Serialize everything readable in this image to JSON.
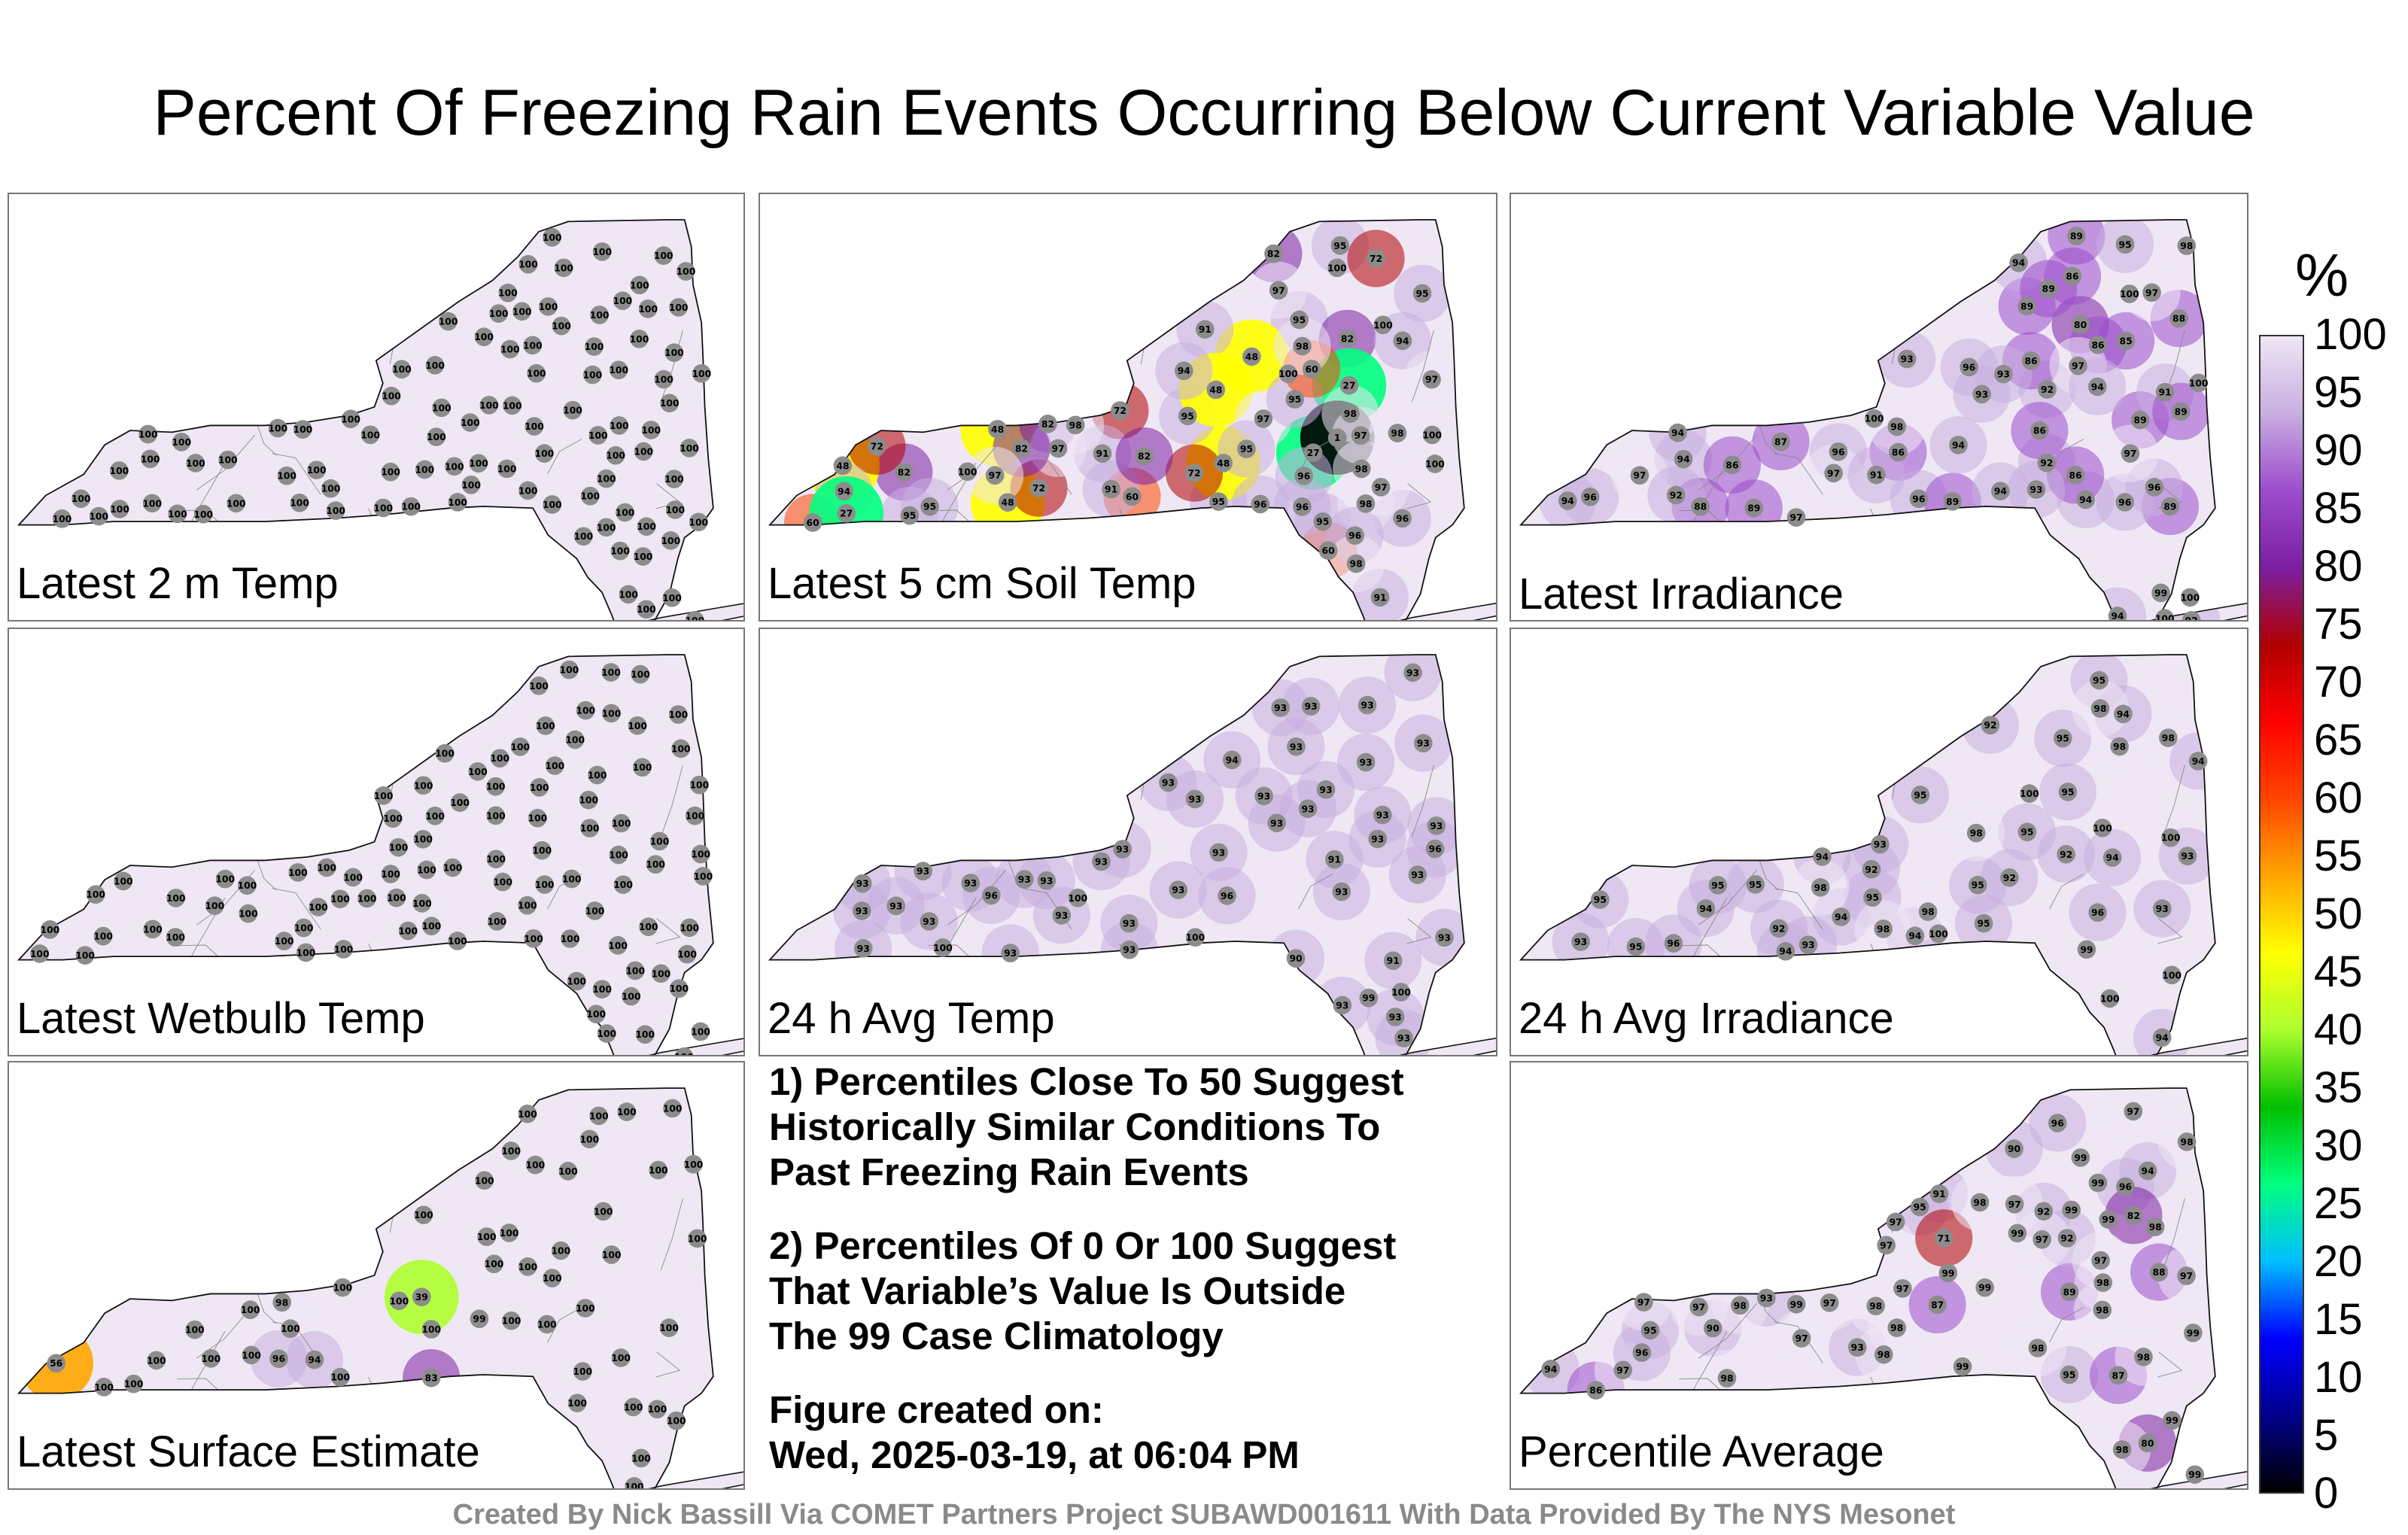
{
  "title": "Percent Of Freezing Rain Events Occurring Below Current Variable Value",
  "panels": [
    {
      "label": "Latest 2 m Temp",
      "station_values": [
        100,
        100,
        100,
        100,
        100,
        100,
        100,
        100,
        100,
        100,
        100,
        100,
        100,
        100,
        100,
        100,
        100,
        100,
        100,
        100,
        100,
        100,
        100,
        100,
        100,
        100,
        100,
        100,
        100,
        100,
        100,
        100,
        100,
        100,
        100,
        100,
        100,
        100,
        100,
        100,
        100,
        100,
        100,
        100,
        100,
        100,
        100,
        100,
        100,
        100,
        100,
        100,
        100,
        100,
        100,
        100,
        100,
        100,
        100,
        100,
        100,
        100,
        100,
        100,
        100,
        100,
        100,
        100,
        100,
        100,
        100,
        100,
        100,
        100,
        100,
        100,
        100,
        100,
        100,
        100,
        100,
        100,
        100,
        100,
        100,
        100,
        100,
        100,
        100,
        100,
        100,
        100,
        100,
        100,
        100,
        100
      ]
    },
    {
      "label": "Latest 5 cm Soil Temp",
      "station_values": [
        82,
        95,
        60,
        82,
        95,
        82,
        48,
        95,
        72,
        60,
        48,
        91,
        95,
        48,
        94,
        95,
        91,
        27,
        72,
        48,
        27,
        48,
        82,
        72,
        60,
        48,
        1,
        72,
        91,
        98,
        100,
        98,
        97,
        97,
        95,
        98,
        96,
        98,
        97,
        94,
        96,
        60,
        27,
        95,
        98,
        82,
        94,
        95,
        97,
        95,
        100,
        96,
        97,
        97,
        82,
        100,
        95,
        100,
        96,
        91,
        72,
        98,
        100,
        100,
        97,
        98,
        96
      ]
    },
    {
      "label": "Latest Irradiance",
      "station_values": [
        97,
        98,
        100,
        89,
        96,
        94,
        92,
        80,
        94,
        88,
        92,
        86,
        86,
        94,
        86,
        86,
        85,
        86,
        86,
        89,
        86,
        87,
        89,
        93,
        89,
        88,
        89,
        100,
        97,
        100,
        96,
        100,
        99,
        98,
        100,
        97,
        96,
        97,
        95,
        94,
        93,
        91,
        91,
        96,
        97,
        94,
        96,
        92,
        94,
        89,
        97,
        96,
        94,
        93,
        92,
        89,
        94,
        89,
        93,
        94
      ]
    },
    {
      "label": "Latest Wetbulb Temp",
      "station_values": [
        100,
        100,
        100,
        100,
        100,
        100,
        100,
        100,
        100,
        100,
        100,
        100,
        100,
        100,
        100,
        100,
        100,
        100,
        100,
        100,
        100,
        100,
        100,
        100,
        100,
        100,
        100,
        100,
        100,
        100,
        100,
        100,
        100,
        100,
        100,
        100,
        100,
        100,
        100,
        100,
        100,
        100,
        100,
        100,
        100,
        100,
        100,
        100,
        100,
        100,
        100,
        100,
        100,
        100,
        100,
        100,
        100,
        100,
        100,
        100,
        100,
        100,
        100,
        100,
        100,
        100,
        100,
        100,
        100,
        100,
        100,
        100,
        100,
        100,
        100,
        100,
        100,
        100,
        100,
        100,
        100,
        100,
        100,
        100,
        100,
        100,
        100,
        100,
        100,
        100,
        100,
        100,
        100,
        100,
        100,
        100
      ]
    },
    {
      "label": "24 h Avg Temp",
      "station_values": [
        93,
        93,
        93,
        93,
        93,
        93,
        93,
        93,
        93,
        93,
        90,
        93,
        91,
        93,
        93,
        91,
        93,
        93,
        99,
        93,
        96,
        96,
        100,
        100,
        93,
        94,
        93,
        93,
        93,
        93,
        93,
        93,
        100,
        100,
        93,
        93,
        93,
        93,
        93,
        93,
        93,
        93,
        93,
        93,
        96,
        93,
        93,
        93,
        93,
        93,
        93
      ]
    },
    {
      "label": "24 h Avg Irradiance",
      "station_values": [
        94,
        95,
        93,
        92,
        94,
        92,
        92,
        95,
        98,
        98,
        92,
        94,
        94,
        92,
        95,
        95,
        98,
        94,
        95,
        95,
        95,
        94,
        95,
        94,
        95,
        94,
        93,
        95,
        96,
        93,
        95,
        95,
        98,
        94,
        93,
        99,
        100,
        98,
        93,
        96,
        100,
        100,
        100,
        98,
        100,
        98,
        100
      ]
    },
    {
      "label": "Latest Surface Estimate",
      "station_values": [
        100,
        100,
        100,
        100,
        100,
        100,
        100,
        100,
        56,
        39,
        94,
        100,
        100,
        83,
        96,
        98,
        100,
        99,
        100,
        100,
        100,
        100,
        100,
        100,
        100,
        100,
        100,
        100,
        100,
        100,
        100,
        100,
        100,
        100,
        100,
        100,
        100,
        100,
        100,
        100,
        100,
        100,
        100,
        100,
        100,
        100,
        100,
        100,
        100,
        100,
        100,
        100
      ]
    },
    {
      "label": "Percentile Average",
      "station_values": [
        97,
        95,
        98,
        92,
        94,
        90,
        93,
        94,
        97,
        80,
        96,
        95,
        89,
        88,
        95,
        93,
        82,
        92,
        90,
        91,
        86,
        87,
        97,
        71,
        99,
        99,
        99,
        98,
        99,
        98,
        99,
        97,
        97,
        97,
        98,
        99,
        98,
        97,
        97,
        99,
        98,
        98,
        99,
        97,
        96,
        98,
        97,
        99,
        97,
        98,
        98,
        98,
        99,
        97,
        87,
        96,
        99,
        98,
        98,
        97,
        99
      ]
    }
  ],
  "notes": {
    "note1": [
      "1) Percentiles Close To 50 Suggest",
      "Historically Similar Conditions To",
      "Past Freezing Rain Events"
    ],
    "note2": [
      "2) Percentiles Of 0 Or 100 Suggest",
      "That Variable’s Value Is Outside",
      "The 99 Case Climatology"
    ],
    "created": [
      "Figure created on:",
      "Wed, 2025-03-19, at 06:04 PM"
    ]
  },
  "legend": {
    "unit": "%",
    "ticks": [
      "100",
      "95",
      "90",
      "85",
      "80",
      "75",
      "70",
      "65",
      "60",
      "55",
      "50",
      "45",
      "40",
      "35",
      "30",
      "25",
      "20",
      "15",
      "10",
      "5",
      "0"
    ],
    "colors": [
      "#000000",
      "#00008b",
      "#0000ff",
      "#00bfff",
      "#00ff7f",
      "#00c000",
      "#adff2f",
      "#ffff00",
      "#ffa500",
      "#ff4500",
      "#ff0000",
      "#b00000",
      "#7b1fa2",
      "#9c4dcc",
      "#c9aee0",
      "#eee6f5"
    ]
  },
  "credit": "Created By Nick Bassill Via COMET Partners Project SUBAWD001611 With Data Provided By The NYS Mesonet"
}
